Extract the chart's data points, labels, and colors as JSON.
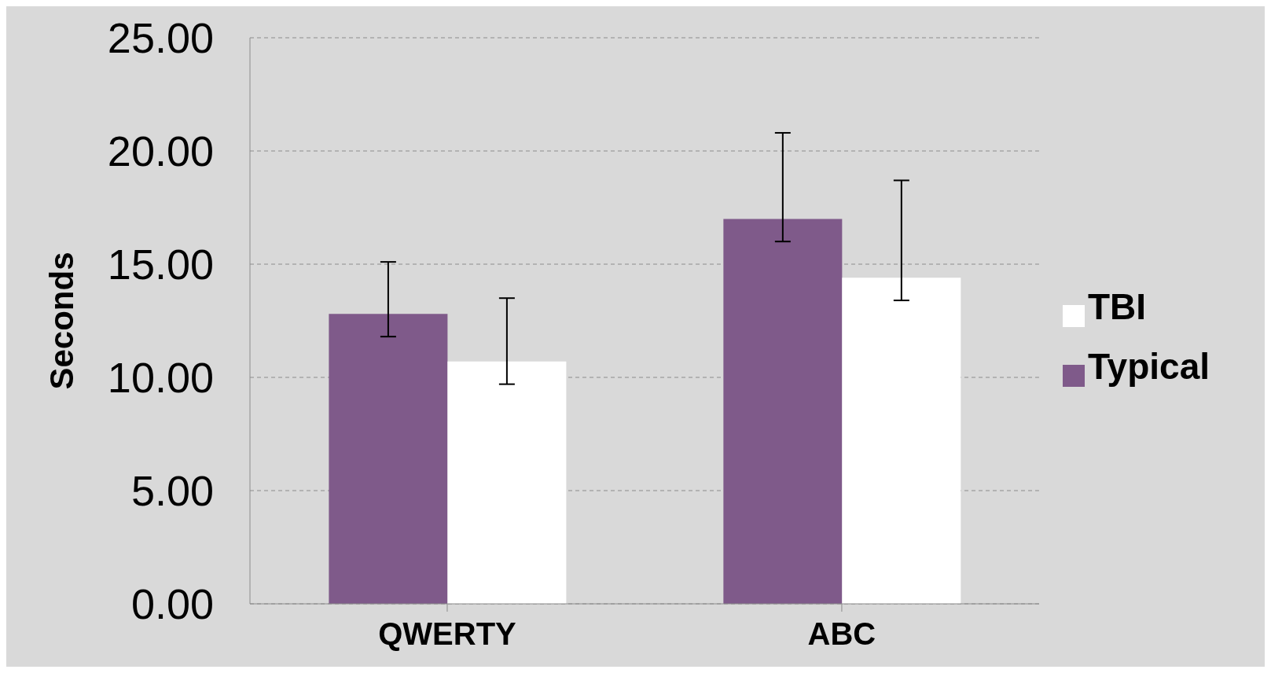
{
  "chart_data": {
    "type": "bar",
    "ylabel": "Seconds",
    "categories": [
      "QWERTY",
      "ABC"
    ],
    "series": [
      {
        "name": "Typical",
        "color": "#7f5a8a",
        "values": [
          12.8,
          17.0
        ],
        "errors": [
          [
            11.8,
            15.1
          ],
          [
            16.0,
            20.8
          ]
        ]
      },
      {
        "name": "TBI",
        "color": "#ffffff",
        "values": [
          10.7,
          14.4
        ],
        "errors": [
          [
            9.7,
            13.5
          ],
          [
            13.4,
            18.7
          ]
        ]
      }
    ],
    "ylim": [
      0,
      25
    ],
    "yticks": [
      {
        "value": 0,
        "label": "0.00"
      },
      {
        "value": 5,
        "label": "5.00"
      },
      {
        "value": 10,
        "label": "10.00"
      },
      {
        "value": 15,
        "label": "15.00"
      },
      {
        "value": 20,
        "label": "20.00"
      },
      {
        "value": 25,
        "label": "25.00"
      }
    ],
    "grid": "y",
    "legend": "right"
  }
}
